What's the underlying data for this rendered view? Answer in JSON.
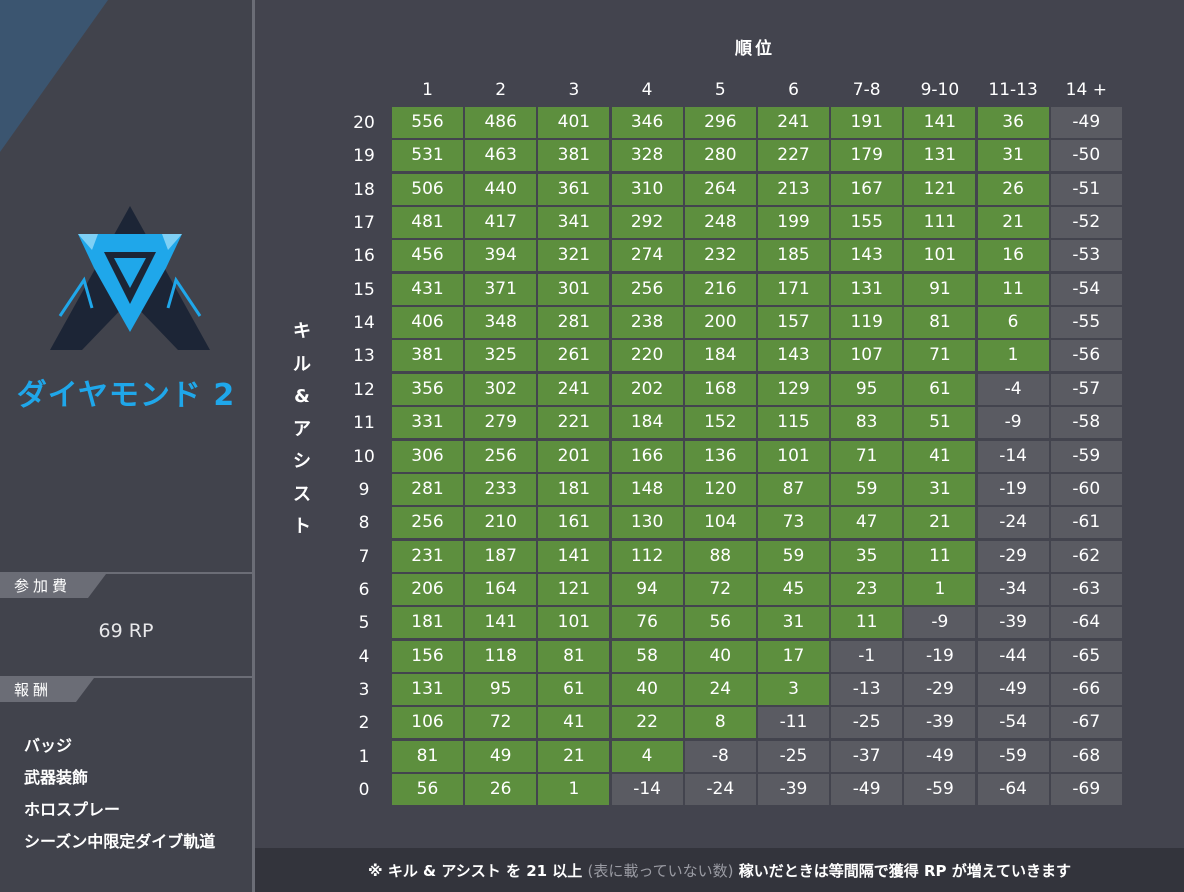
{
  "rank": {
    "name": "ダイヤモンド 2",
    "color": "#1fa7ea"
  },
  "entry_fee": {
    "label": "参加費",
    "value": "69 RP"
  },
  "rewards": {
    "label": "報酬",
    "items": [
      "バッジ",
      "武器装飾",
      "ホロスプレー",
      "シーズン中限定ダイブ軌道"
    ]
  },
  "table": {
    "title": "順位",
    "row_axis_label": [
      "キ",
      "ル",
      "&",
      "ア",
      "シ",
      "ス",
      "ト"
    ],
    "columns": [
      "1",
      "2",
      "3",
      "4",
      "5",
      "6",
      "7-8",
      "9-10",
      "11-13",
      "14 +"
    ],
    "rows": [
      "20",
      "19",
      "18",
      "17",
      "16",
      "15",
      "14",
      "13",
      "12",
      "11",
      "10",
      "9",
      "8",
      "7",
      "6",
      "5",
      "4",
      "3",
      "2",
      "1",
      "0"
    ],
    "values": [
      [
        "556",
        "486",
        "401",
        "346",
        "296",
        "241",
        "191",
        "141",
        "36",
        "-49"
      ],
      [
        "531",
        "463",
        "381",
        "328",
        "280",
        "227",
        "179",
        "131",
        "31",
        "-50"
      ],
      [
        "506",
        "440",
        "361",
        "310",
        "264",
        "213",
        "167",
        "121",
        "26",
        "-51"
      ],
      [
        "481",
        "417",
        "341",
        "292",
        "248",
        "199",
        "155",
        "111",
        "21",
        "-52"
      ],
      [
        "456",
        "394",
        "321",
        "274",
        "232",
        "185",
        "143",
        "101",
        "16",
        "-53"
      ],
      [
        "431",
        "371",
        "301",
        "256",
        "216",
        "171",
        "131",
        "91",
        "11",
        "-54"
      ],
      [
        "406",
        "348",
        "281",
        "238",
        "200",
        "157",
        "119",
        "81",
        "6",
        "-55"
      ],
      [
        "381",
        "325",
        "261",
        "220",
        "184",
        "143",
        "107",
        "71",
        "1",
        "-56"
      ],
      [
        "356",
        "302",
        "241",
        "202",
        "168",
        "129",
        "95",
        "61",
        "-4",
        "-57"
      ],
      [
        "331",
        "279",
        "221",
        "184",
        "152",
        "115",
        "83",
        "51",
        "-9",
        "-58"
      ],
      [
        "306",
        "256",
        "201",
        "166",
        "136",
        "101",
        "71",
        "41",
        "-14",
        "-59"
      ],
      [
        "281",
        "233",
        "181",
        "148",
        "120",
        "87",
        "59",
        "31",
        "-19",
        "-60"
      ],
      [
        "256",
        "210",
        "161",
        "130",
        "104",
        "73",
        "47",
        "21",
        "-24",
        "-61"
      ],
      [
        "231",
        "187",
        "141",
        "112",
        "88",
        "59",
        "35",
        "11",
        "-29",
        "-62"
      ],
      [
        "206",
        "164",
        "121",
        "94",
        "72",
        "45",
        "23",
        "1",
        "-34",
        "-63"
      ],
      [
        "181",
        "141",
        "101",
        "76",
        "56",
        "31",
        "11",
        "-9",
        "-39",
        "-64"
      ],
      [
        "156",
        "118",
        "81",
        "58",
        "40",
        "17",
        "-1",
        "-19",
        "-44",
        "-65"
      ],
      [
        "131",
        "95",
        "61",
        "40",
        "24",
        "3",
        "-13",
        "-29",
        "-49",
        "-66"
      ],
      [
        "106",
        "72",
        "41",
        "22",
        "8",
        "-11",
        "-25",
        "-39",
        "-54",
        "-67"
      ],
      [
        "81",
        "49",
        "21",
        "4",
        "-8",
        "-25",
        "-37",
        "-49",
        "-59",
        "-68"
      ],
      [
        "56",
        "26",
        "1",
        "-14",
        "-24",
        "-39",
        "-49",
        "-59",
        "-64",
        "-69"
      ]
    ],
    "colors": {
      "positive": "#5d8f3e",
      "negative": "#5a5b62"
    }
  },
  "footer": {
    "prefix": "※ キル & アシスト を 21 以上",
    "note": "(表に載っていない数)",
    "suffix": "稼いだときは等間隔で獲得 RP が増えていきます"
  }
}
